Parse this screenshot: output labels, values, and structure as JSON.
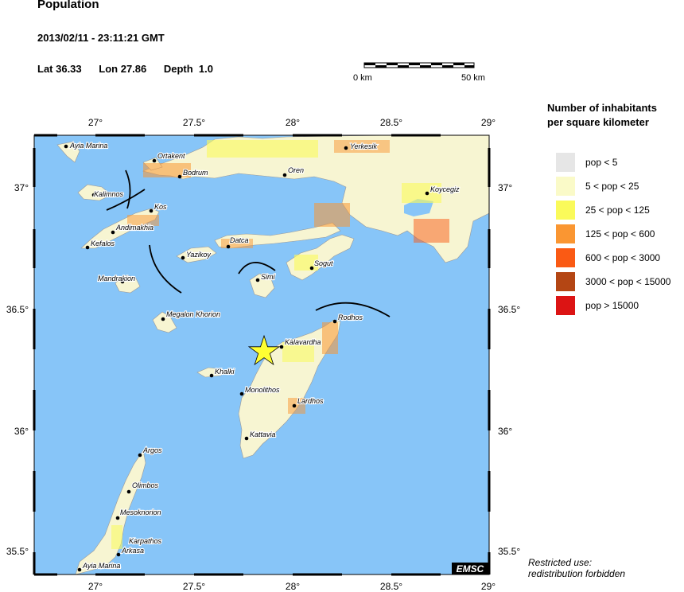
{
  "header": {
    "title": "Population",
    "datetime": "2013/02/11 - 23:11:21 GMT",
    "lat": "Lat 36.33",
    "lon": "Lon  27.86",
    "depth": "Depth  1.0"
  },
  "scale_bar": {
    "left_label": "0 km",
    "right_label": "50 km"
  },
  "legend": {
    "title_line1": "Number of inhabitants",
    "title_line2": "per square kilometer",
    "items": [
      {
        "label": "pop < 5",
        "color": "#e6e6e6"
      },
      {
        "label": "5 < pop < 25",
        "color": "#fafac8"
      },
      {
        "label": "25 < pop < 125",
        "color": "#fafa5a"
      },
      {
        "label": "125 < pop < 600",
        "color": "#fa9632"
      },
      {
        "label": "600 < pop < 3000",
        "color": "#fa5a14"
      },
      {
        "label": "3000 < pop < 15000",
        "color": "#b44614"
      },
      {
        "label": "pop > 15000",
        "color": "#dc1414"
      }
    ]
  },
  "axes": {
    "lon_ticks": [
      "27°",
      "27.5°",
      "28°",
      "28.5°",
      "29°"
    ],
    "lat_ticks": [
      "37°",
      "36.5°",
      "36°",
      "35.5°"
    ]
  },
  "places": {
    "ayia_marina_n": "Ayia Marina",
    "ortakent": "Ortakent",
    "bodrum": "Bodrum",
    "oren": "Oren",
    "yerkesik": "Yerkesik",
    "koycegiz": "Koycegiz",
    "kalimnos": "Kalimnos",
    "kos": "Kos",
    "andimakhia": "Andimakhia",
    "kefalos": "Kefalos",
    "yazikoy": "Yazikoy",
    "datca": "Datca",
    "sogut": "Sogut",
    "mandrakion": "Mandrakion",
    "simi": "Simi",
    "megalon_khorion": "Megalon Khorion",
    "rodhos": "Rodhos",
    "kalavardha": "Kalavardha",
    "khalki": "Khalki",
    "monolithos": "Monolithos",
    "lardhos": "Lardhos",
    "kattavia": "Kattavia",
    "argos": "Argos",
    "olimbos": "Olimbos",
    "mesoknorion": "Mesoknorion",
    "karpathos": "Karpathos",
    "arkasa": "Arkasa",
    "ayia_marina_s": "Ayia Marina"
  },
  "epicenter": {
    "lat": 36.33,
    "lon": 27.86,
    "marker_color": "#ffff33"
  },
  "colors": {
    "sea": "#87c5f8",
    "land": "#f7f5d2",
    "fault": "#000000"
  },
  "badge": "EMSC",
  "restricted": {
    "line1": "Restricted use:",
    "line2": "redistribution forbidden"
  }
}
